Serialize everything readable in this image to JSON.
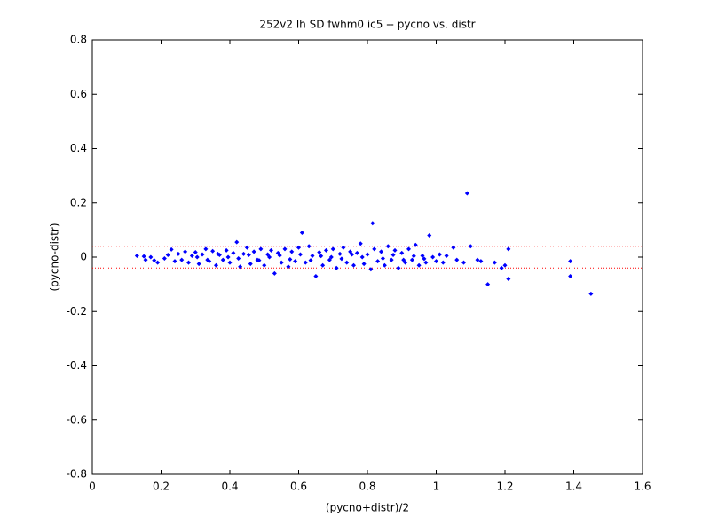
{
  "chart_data": {
    "type": "scatter",
    "title": "252v2 lh SD fwhm0 ic5 -- pycno vs. distr",
    "x_label": "(pycno+distr)/2",
    "y_label": "(pycno-distr)",
    "color": "#0000ff",
    "ref_color": "#ff0000",
    "ref_lines": [
      0.04,
      -0.04
    ],
    "x": [
      0.13,
      0.15,
      0.155,
      0.17,
      0.18,
      0.19,
      0.21,
      0.22,
      0.23,
      0.24,
      0.25,
      0.26,
      0.27,
      0.28,
      0.29,
      0.3,
      0.31,
      0.32,
      0.33,
      0.34,
      0.35,
      0.36,
      0.37,
      0.38,
      0.39,
      0.4,
      0.41,
      0.42,
      0.43,
      0.44,
      0.45,
      0.46,
      0.47,
      0.48,
      0.49,
      0.5,
      0.51,
      0.52,
      0.53,
      0.54,
      0.55,
      0.56,
      0.57,
      0.58,
      0.59,
      0.6,
      0.61,
      0.62,
      0.63,
      0.64,
      0.65,
      0.66,
      0.67,
      0.68,
      0.69,
      0.7,
      0.71,
      0.72,
      0.73,
      0.74,
      0.75,
      0.76,
      0.77,
      0.78,
      0.79,
      0.8,
      0.81,
      0.815,
      0.82,
      0.83,
      0.84,
      0.85,
      0.86,
      0.87,
      0.88,
      0.89,
      0.9,
      0.91,
      0.92,
      0.93,
      0.94,
      0.95,
      0.96,
      0.97,
      0.98,
      0.99,
      1.0,
      1.01,
      1.02,
      1.03,
      1.05,
      1.06,
      1.08,
      1.09,
      1.1,
      1.12,
      1.13,
      1.15,
      1.17,
      1.19,
      1.2,
      1.21,
      1.21,
      1.39,
      1.39,
      1.45,
      0.305,
      0.335,
      0.365,
      0.395,
      0.425,
      0.455,
      0.485,
      0.515,
      0.545,
      0.575,
      0.605,
      0.635,
      0.665,
      0.695,
      0.725,
      0.755,
      0.785,
      0.845,
      0.875,
      0.905,
      0.935,
      0.965
    ],
    "values": [
      0.005,
      0.003,
      -0.01,
      0.0,
      -0.012,
      -0.02,
      -0.005,
      0.008,
      0.028,
      -0.015,
      0.012,
      -0.01,
      0.02,
      -0.02,
      0.005,
      0.018,
      -0.025,
      0.01,
      0.03,
      -0.015,
      0.022,
      -0.03,
      0.008,
      -0.01,
      0.025,
      -0.02,
      0.015,
      0.055,
      -0.035,
      0.012,
      0.035,
      -0.025,
      0.02,
      -0.01,
      0.03,
      -0.03,
      0.01,
      0.025,
      -0.06,
      0.015,
      -0.02,
      0.03,
      -0.035,
      0.02,
      -0.015,
      0.035,
      0.09,
      -0.02,
      0.04,
      0.005,
      -0.07,
      0.018,
      -0.03,
      0.025,
      -0.01,
      0.03,
      -0.04,
      0.012,
      0.035,
      -0.02,
      0.02,
      -0.03,
      0.015,
      0.05,
      -0.025,
      0.01,
      -0.045,
      0.125,
      0.03,
      -0.015,
      0.02,
      -0.03,
      0.04,
      -0.01,
      0.025,
      -0.04,
      0.015,
      -0.02,
      0.03,
      -0.01,
      0.045,
      -0.03,
      0.005,
      -0.02,
      0.08,
      0.0,
      -0.015,
      0.01,
      -0.02,
      0.005,
      0.035,
      -0.01,
      -0.02,
      0.235,
      0.04,
      -0.01,
      -0.015,
      -0.1,
      -0.02,
      -0.04,
      -0.03,
      -0.08,
      0.03,
      -0.015,
      -0.07,
      -0.135,
      0.0,
      -0.01,
      0.012,
      0.0,
      -0.005,
      0.008,
      -0.012,
      0.0,
      0.006,
      -0.008,
      0.01,
      -0.012,
      0.004,
      0.0,
      -0.006,
      0.01,
      0.0,
      -0.005,
      0.008,
      -0.01,
      0.004,
      -0.006
    ],
    "xlim": [
      0,
      1.6
    ],
    "xticks": [
      0,
      0.2,
      0.4,
      0.6,
      0.8,
      1,
      1.2,
      1.4,
      1.6
    ],
    "ylim": [
      -0.8,
      0.8
    ],
    "yticks": [
      -0.8,
      -0.6,
      -0.4,
      -0.2,
      0,
      0.2,
      0.4,
      0.6,
      0.8
    ]
  }
}
